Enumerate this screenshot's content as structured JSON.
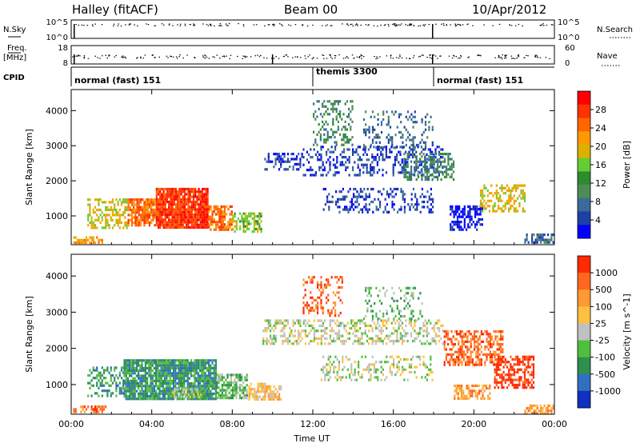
{
  "header": {
    "site": "Halley (fitACF)",
    "beam": "Beam 00",
    "date": "10/Apr/2012"
  },
  "top_panels": {
    "nsky_label": "N.Sky",
    "nsky_ticks": [
      "10^5",
      "10^0"
    ],
    "nsearch_label": "N.Search",
    "nsearch_ticks": [
      "10^5",
      "10^0"
    ],
    "freq_label": "Freq.",
    "freq_unit": "[MHz]",
    "freq_ticks": [
      "18",
      "8"
    ],
    "nave_label": "Nave",
    "nave_ticks": [
      "60",
      "0"
    ],
    "cpid_label": "CPID",
    "cpid_segments": [
      {
        "label": "normal (fast) 151",
        "start_h": 0.0
      },
      {
        "label": "themis 3300",
        "start_h": 12.0
      },
      {
        "label": "normal (fast) 151",
        "start_h": 18.0
      }
    ]
  },
  "chart_data": [
    {
      "type": "heatmap",
      "name": "power",
      "xlabel": "Time UT",
      "ylabel": "Slant Range [km]",
      "xlim": [
        0,
        24
      ],
      "ylim": [
        180,
        4600
      ],
      "x_ticks": [
        "00:00",
        "04:00",
        "08:00",
        "12:00",
        "16:00",
        "20:00",
        "00:00"
      ],
      "y_ticks": [
        1000,
        2000,
        3000,
        4000
      ],
      "colorbar": {
        "label": "Power [dB]",
        "ticks": [
          "4",
          "8",
          "12",
          "16",
          "20",
          "24",
          "28"
        ],
        "colors": [
          "#0000ff",
          "#1f3fa8",
          "#3a6b9a",
          "#4e8c56",
          "#2e8b2e",
          "#66cc33",
          "#ddb000",
          "#ff9900",
          "#ff6600",
          "#ff3300",
          "#ff0000"
        ]
      },
      "regions": [
        {
          "t0": 0.1,
          "t1": 1.6,
          "r0": 200,
          "r1": 420,
          "level": 7,
          "density": 0.55
        },
        {
          "t0": 0.8,
          "t1": 2.8,
          "r0": 650,
          "r1": 1500,
          "level": 6,
          "density": 0.5
        },
        {
          "t0": 2.8,
          "t1": 4.2,
          "r0": 700,
          "r1": 1500,
          "level": 8,
          "density": 0.8
        },
        {
          "t0": 4.2,
          "t1": 6.8,
          "r0": 600,
          "r1": 1800,
          "level": 9,
          "density": 0.92
        },
        {
          "t0": 6.8,
          "t1": 8.0,
          "r0": 600,
          "r1": 1300,
          "level": 8,
          "density": 0.8
        },
        {
          "t0": 8.0,
          "t1": 9.5,
          "r0": 550,
          "r1": 1100,
          "level": 5,
          "density": 0.55
        },
        {
          "t0": 9.5,
          "t1": 11.5,
          "r0": 2300,
          "r1": 2800,
          "level": 1,
          "density": 0.35
        },
        {
          "t0": 11.5,
          "t1": 18.5,
          "r0": 2100,
          "r1": 3000,
          "level": 1,
          "density": 0.3
        },
        {
          "t0": 12.0,
          "t1": 14.0,
          "r0": 3000,
          "r1": 4300,
          "level": 3,
          "density": 0.35
        },
        {
          "t0": 14.5,
          "t1": 18.0,
          "r0": 2900,
          "r1": 4000,
          "level": 2,
          "density": 0.22
        },
        {
          "t0": 12.5,
          "t1": 18.0,
          "r0": 1100,
          "r1": 1800,
          "level": 1,
          "density": 0.28
        },
        {
          "t0": 16.5,
          "t1": 19.0,
          "r0": 2000,
          "r1": 2800,
          "level": 3,
          "density": 0.45
        },
        {
          "t0": 18.8,
          "t1": 20.5,
          "r0": 600,
          "r1": 1300,
          "level": 0,
          "density": 0.55
        },
        {
          "t0": 20.3,
          "t1": 22.6,
          "r0": 1100,
          "r1": 1900,
          "level": 6,
          "density": 0.5
        },
        {
          "t0": 22.5,
          "t1": 24.0,
          "r0": 200,
          "r1": 500,
          "level": 2,
          "density": 0.6
        }
      ]
    },
    {
      "type": "heatmap",
      "name": "velocity",
      "xlabel": "Time UT",
      "ylabel": "Slant Range [km]",
      "xlim": [
        0,
        24
      ],
      "ylim": [
        180,
        4600
      ],
      "x_ticks": [
        "00:00",
        "04:00",
        "08:00",
        "12:00",
        "16:00",
        "20:00",
        "00:00"
      ],
      "y_ticks": [
        1000,
        2000,
        3000,
        4000
      ],
      "colorbar": {
        "label": "Velocity [m s^-1]",
        "ticks": [
          "1000",
          "500",
          "100",
          "25",
          "-25",
          "-100",
          "-500",
          "-1000"
        ],
        "colors": [
          "#1030c0",
          "#3070c0",
          "#2f8f4f",
          "#4fbf3f",
          "#c0c0c0",
          "#ffc040",
          "#ff9933",
          "#ff6620",
          "#ff2a00"
        ]
      },
      "regions": [
        {
          "t0": 0.1,
          "t1": 1.8,
          "r0": 200,
          "r1": 420,
          "level": 7,
          "density": 0.6
        },
        {
          "t0": 0.8,
          "t1": 2.6,
          "r0": 650,
          "r1": 1500,
          "level": 2,
          "density": 0.45
        },
        {
          "t0": 2.6,
          "t1": 7.2,
          "r0": 600,
          "r1": 1700,
          "level": 2,
          "density": 0.88
        },
        {
          "t0": 5.0,
          "t1": 6.5,
          "r0": 650,
          "r1": 900,
          "level": 4,
          "density": 0.5
        },
        {
          "t0": 7.2,
          "t1": 8.8,
          "r0": 600,
          "r1": 1300,
          "level": 3,
          "density": 0.7
        },
        {
          "t0": 8.8,
          "t1": 10.5,
          "r0": 550,
          "r1": 1050,
          "level": 5,
          "density": 0.7
        },
        {
          "t0": 9.5,
          "t1": 18.5,
          "r0": 2100,
          "r1": 2800,
          "level": 4,
          "density": 0.4
        },
        {
          "t0": 12.3,
          "t1": 18.0,
          "r0": 1100,
          "r1": 1800,
          "level": 4,
          "density": 0.32
        },
        {
          "t0": 11.5,
          "t1": 13.5,
          "r0": 2900,
          "r1": 4000,
          "level": 7,
          "density": 0.3
        },
        {
          "t0": 14.5,
          "t1": 17.5,
          "r0": 2800,
          "r1": 3700,
          "level": 3,
          "density": 0.2
        },
        {
          "t0": 18.5,
          "t1": 21.5,
          "r0": 1500,
          "r1": 2500,
          "level": 7,
          "density": 0.55
        },
        {
          "t0": 21.0,
          "t1": 23.0,
          "r0": 900,
          "r1": 1800,
          "level": 8,
          "density": 0.6
        },
        {
          "t0": 19.0,
          "t1": 20.8,
          "r0": 600,
          "r1": 1000,
          "level": 6,
          "density": 0.55
        },
        {
          "t0": 22.5,
          "t1": 24.0,
          "r0": 200,
          "r1": 450,
          "level": 6,
          "density": 0.6
        }
      ]
    }
  ]
}
